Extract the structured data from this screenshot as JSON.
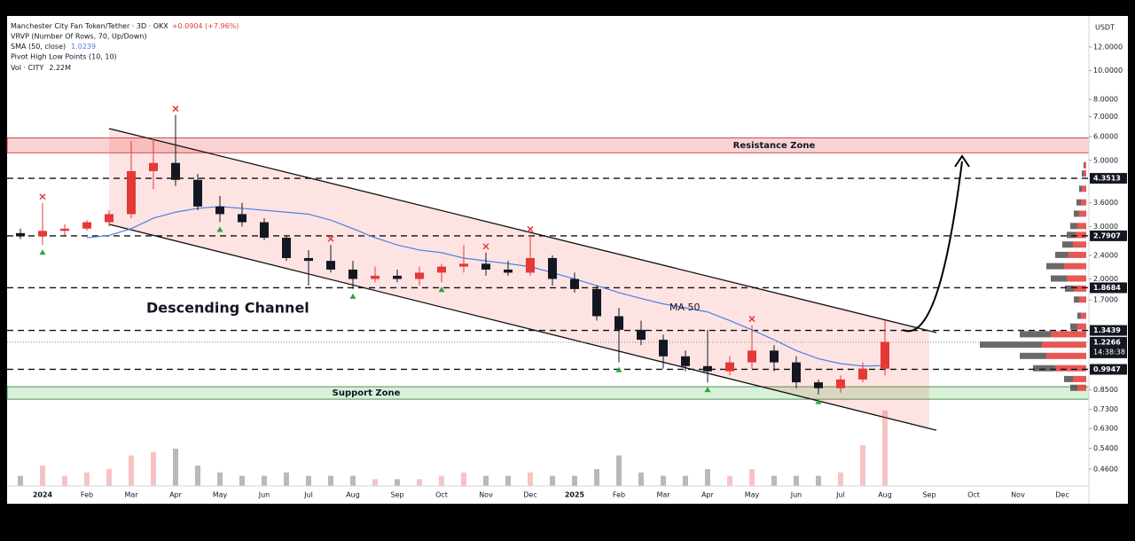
{
  "header": {
    "symbol": "Manchester City Fan Token/Tether · 3D · OKX",
    "change": "+0.0904 (+7.96%)",
    "vrvp": "VRVP (Number Of Rows, 70, Up/Down)",
    "sma": "SMA (50, close)",
    "pivots": "Pivot High Low Points (10, 10)",
    "vol": "Vol · CITY",
    "vol_value": "2.22M"
  },
  "chart_data": {
    "type": "candlestick",
    "currency": "USDT",
    "log_scale": true,
    "grid": false,
    "categories": [
      null,
      "2024",
      null,
      "Feb",
      null,
      "Mar",
      null,
      "Apr",
      null,
      "May",
      null,
      "Jun",
      null,
      "Jul",
      null,
      "Aug",
      null,
      "Sep",
      null,
      "Oct",
      null,
      "Nov",
      null,
      "Dec",
      null,
      "2025",
      null,
      "Feb",
      null,
      "Mar",
      null,
      "Apr",
      null,
      "May",
      null,
      "Jun",
      null,
      "Jul",
      null,
      "Aug",
      null,
      "Sep",
      null,
      "Oct",
      null,
      "Nov",
      null,
      "Dec",
      null
    ],
    "open": [
      2.85,
      2.78,
      2.9,
      2.95,
      3.1,
      3.3,
      4.6,
      4.9,
      4.3,
      3.5,
      3.3,
      3.1,
      2.75,
      2.35,
      2.3,
      2.15,
      2.0,
      2.05,
      2.0,
      2.1,
      2.2,
      2.25,
      2.15,
      2.1,
      2.35,
      2.0,
      1.85,
      1.5,
      1.35,
      1.25,
      1.1,
      1.02,
      0.98,
      1.05,
      1.15,
      1.05,
      0.9,
      0.86,
      0.92,
      1.0,
      null,
      null,
      null,
      null,
      null,
      null,
      null,
      null,
      null
    ],
    "high": [
      2.95,
      3.6,
      3.05,
      3.15,
      3.4,
      5.8,
      5.9,
      7.1,
      4.5,
      3.8,
      3.6,
      3.2,
      2.8,
      2.5,
      2.6,
      2.3,
      2.2,
      2.15,
      2.2,
      2.25,
      2.6,
      2.45,
      2.3,
      2.8,
      2.4,
      2.1,
      1.9,
      1.6,
      1.45,
      1.3,
      1.15,
      1.35,
      1.1,
      1.4,
      1.2,
      1.1,
      0.92,
      0.95,
      1.05,
      1.45,
      null,
      null,
      null,
      null,
      null,
      null,
      null,
      null,
      null
    ],
    "low": [
      2.72,
      2.6,
      2.8,
      2.9,
      3.0,
      3.2,
      4.0,
      4.1,
      3.4,
      3.1,
      3.0,
      2.7,
      2.3,
      1.9,
      2.1,
      1.85,
      1.95,
      1.95,
      1.9,
      1.95,
      2.1,
      2.05,
      2.05,
      2.05,
      1.9,
      1.8,
      1.45,
      1.05,
      1.2,
      1.0,
      0.98,
      0.9,
      0.95,
      1.0,
      0.98,
      0.86,
      0.82,
      0.83,
      0.9,
      0.95,
      null,
      null,
      null,
      null,
      null,
      null,
      null,
      null,
      null
    ],
    "close": [
      2.78,
      2.9,
      2.95,
      3.1,
      3.3,
      4.6,
      4.9,
      4.3,
      3.5,
      3.3,
      3.1,
      2.75,
      2.35,
      2.3,
      2.15,
      2.0,
      2.05,
      2.0,
      2.1,
      2.2,
      2.25,
      2.15,
      2.1,
      2.35,
      2.0,
      1.85,
      1.5,
      1.35,
      1.25,
      1.1,
      1.02,
      0.98,
      1.05,
      1.15,
      1.05,
      0.9,
      0.86,
      0.92,
      1.0,
      1.23,
      null,
      null,
      null,
      null,
      null,
      null,
      null,
      null,
      null
    ],
    "volume": [
      0.3,
      0.6,
      0.3,
      0.4,
      0.5,
      0.9,
      1.0,
      1.1,
      0.6,
      0.4,
      0.3,
      0.3,
      0.4,
      0.3,
      0.3,
      0.3,
      0.2,
      0.2,
      0.2,
      0.3,
      0.4,
      0.3,
      0.3,
      0.4,
      0.3,
      0.3,
      0.5,
      0.9,
      0.4,
      0.3,
      0.3,
      0.5,
      0.3,
      0.5,
      0.3,
      0.3,
      0.3,
      0.4,
      1.2,
      2.22,
      null,
      null,
      null,
      null,
      null,
      null,
      null,
      null,
      null
    ],
    "sma": [
      null,
      null,
      null,
      2.75,
      2.8,
      2.95,
      3.2,
      3.35,
      3.45,
      3.5,
      3.45,
      3.4,
      3.35,
      3.3,
      3.15,
      2.95,
      2.75,
      2.6,
      2.5,
      2.45,
      2.35,
      2.3,
      2.25,
      2.2,
      2.1,
      2.0,
      1.9,
      1.8,
      1.72,
      1.65,
      1.6,
      1.55,
      1.45,
      1.35,
      1.25,
      1.15,
      1.08,
      1.04,
      1.02,
      1.0239,
      null,
      null,
      null,
      null,
      null,
      null,
      null,
      null,
      null
    ],
    "up_color": "#e53935",
    "down_color": "#131722",
    "sma_color": "#4a7fe0",
    "ylim": [
      0.404,
      15.25
    ],
    "yticks": [
      {
        "value": 12,
        "label": "12.0000"
      },
      {
        "value": 10,
        "label": "10.0000"
      },
      {
        "value": 8,
        "label": "8.0000"
      },
      {
        "value": 7,
        "label": "7.0000"
      },
      {
        "value": 6,
        "label": "6.0000"
      },
      {
        "value": 5,
        "label": "5.0000"
      },
      {
        "value": 3.6,
        "label": "3.6000"
      },
      {
        "value": 3,
        "label": "3.0000"
      },
      {
        "value": 2.4,
        "label": "2.4000"
      },
      {
        "value": 2,
        "label": "2.0000"
      },
      {
        "value": 1.7,
        "label": "1.7000"
      },
      {
        "value": 0.85,
        "label": "0.8500"
      },
      {
        "value": 0.73,
        "label": "0.7300"
      },
      {
        "value": 0.63,
        "label": "0.6300"
      },
      {
        "value": 0.54,
        "label": "0.5400"
      },
      {
        "value": 0.46,
        "label": "0.4600"
      }
    ],
    "levels": [
      4.3513,
      2.7907,
      1.8684,
      1.3439,
      0.9947
    ],
    "current_price": 1.2266,
    "countdown": "14:38:38",
    "resistance_zone": {
      "label": "Resistance Zone",
      "range": [
        5.3,
        5.95
      ]
    },
    "support_zone": {
      "label": "Support Zone",
      "range": [
        0.79,
        0.87
      ]
    },
    "channel": {
      "label": "Descending Channel",
      "from": 4,
      "to": 41,
      "upper": [
        6.39,
        1.34
      ],
      "lower": [
        3.05,
        0.63
      ]
    },
    "ma_label": "MA 50",
    "pivot_highs": [
      1,
      7,
      14,
      21,
      23,
      33
    ],
    "pivot_lows": [
      1,
      9,
      15,
      19,
      27,
      31,
      36
    ],
    "volume_profile": {
      "prices": [
        4.8,
        4.5,
        4.0,
        3.6,
        3.3,
        3.0,
        2.8,
        2.6,
        2.4,
        2.2,
        2.0,
        1.85,
        1.7,
        1.5,
        1.38,
        1.3,
        1.2,
        1.1,
        1.0,
        0.92,
        0.86
      ],
      "up": [
        2,
        3,
        5,
        6,
        8,
        10,
        12,
        15,
        20,
        25,
        22,
        14,
        8,
        6,
        10,
        40,
        50,
        45,
        35,
        15,
        10
      ],
      "down": [
        1,
        2,
        3,
        5,
        6,
        8,
        10,
        12,
        15,
        20,
        18,
        10,
        6,
        4,
        8,
        35,
        70,
        30,
        25,
        10,
        8
      ]
    }
  }
}
